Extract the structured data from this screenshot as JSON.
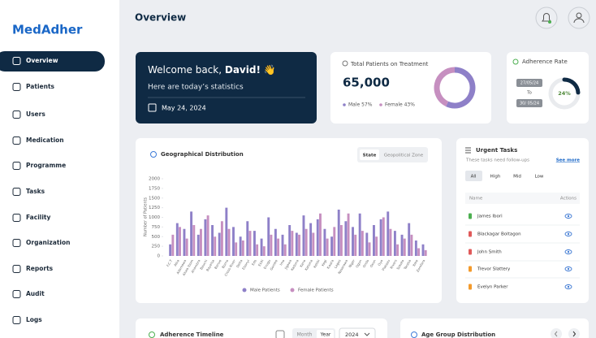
{
  "logo": "MedAdher",
  "nav": [
    "Overview",
    "Patients",
    "Users",
    "Medication",
    "Programme",
    "Tasks",
    "Facility",
    "Organization",
    "Reports",
    "Audit",
    "Logs"
  ],
  "header": {
    "title": "Overview"
  },
  "welcome": {
    "greeting": "Welcome back, ",
    "name": "David!",
    "emoji": " 👋",
    "subtitle": "Here are today’s statistics",
    "date": "May 24, 2024"
  },
  "patients": {
    "title": "Total Patients on Treatment",
    "total": "65,000",
    "male_label": "Male 57%",
    "female_label": "Female 43%",
    "male": 57,
    "female": 43,
    "male_color": "#8e80c8",
    "female_color": "#c68fc0"
  },
  "adherence": {
    "title": "Adherence Rate",
    "from": "27/05/24",
    "to_label": "To",
    "to": "30/ 05/24",
    "value": 24,
    "value_label": "24%",
    "color": "#0f2a44"
  },
  "chart_data": {
    "type": "bar",
    "title": "Geographical Distribution",
    "tabs": [
      "State",
      "Geopolitical Zone"
    ],
    "y_label": "Number of Patients",
    "categories": [
      "F.C.T",
      "Abia",
      "Adamawa",
      "Akwa Ibom",
      "Anambra",
      "Bauchi",
      "Bayelsa",
      "Benue",
      "Borno",
      "Cross River",
      "Delta",
      "Ebonyi",
      "Edo",
      "Ekiti",
      "Enugu",
      "Gombe",
      "Imo",
      "Jigawa",
      "Kaduna",
      "Kano",
      "Katsina",
      "Kebbi",
      "Kogi",
      "Kwara",
      "Lagos",
      "Nasarawa",
      "Niger",
      "Ogun",
      "Ondo",
      "Osun",
      "Oyo",
      "Plateau",
      "Rivers",
      "Sokoto",
      "Taraba",
      "Yobe",
      "Zamfara"
    ],
    "series": [
      {
        "name": "Male Patients",
        "color": "#8e80c8",
        "values": [
          300,
          850,
          700,
          1150,
          550,
          950,
          800,
          600,
          1250,
          750,
          500,
          900,
          650,
          450,
          1000,
          700,
          550,
          800,
          600,
          1050,
          850,
          950,
          700,
          500,
          1200,
          900,
          750,
          1100,
          600,
          800,
          950,
          1150,
          650,
          550,
          850,
          400,
          300
        ]
      },
      {
        "name": "Female Patients",
        "color": "#c68fc0",
        "values": [
          550,
          750,
          450,
          800,
          700,
          1050,
          500,
          900,
          700,
          350,
          400,
          650,
          300,
          250,
          550,
          450,
          300,
          650,
          550,
          700,
          600,
          1100,
          450,
          750,
          800,
          1100,
          550,
          650,
          350,
          500,
          1000,
          700,
          300,
          450,
          550,
          200,
          150
        ]
      }
    ],
    "ylim": [
      0,
      2000
    ],
    "yticks": [
      0,
      250,
      500,
      750,
      1000,
      1250,
      1500,
      1750,
      2000
    ],
    "grid": false
  },
  "tasks": {
    "title": "Urgent Tasks",
    "subtitle": "These tasks need follow-ups",
    "see_more": "See more",
    "filters": [
      "All",
      "High",
      "Mid",
      "Low"
    ],
    "columns": [
      "Name",
      "Actions"
    ],
    "rows": [
      {
        "name": "James Ibori",
        "color": "#4caf50"
      },
      {
        "name": "Blackagar Boltagon",
        "color": "#e05a5a"
      },
      {
        "name": "John Smith",
        "color": "#e05a5a"
      },
      {
        "name": "Trevor Slattery",
        "color": "#f39a2b"
      },
      {
        "name": "Evelyn Parker",
        "color": "#f39a2b"
      }
    ]
  },
  "bottom": {
    "timeline_title": "Adherence Timeline",
    "month": "Month",
    "year": "Year",
    "selected_year": "2024",
    "age_title": "Age Group Distribution"
  }
}
